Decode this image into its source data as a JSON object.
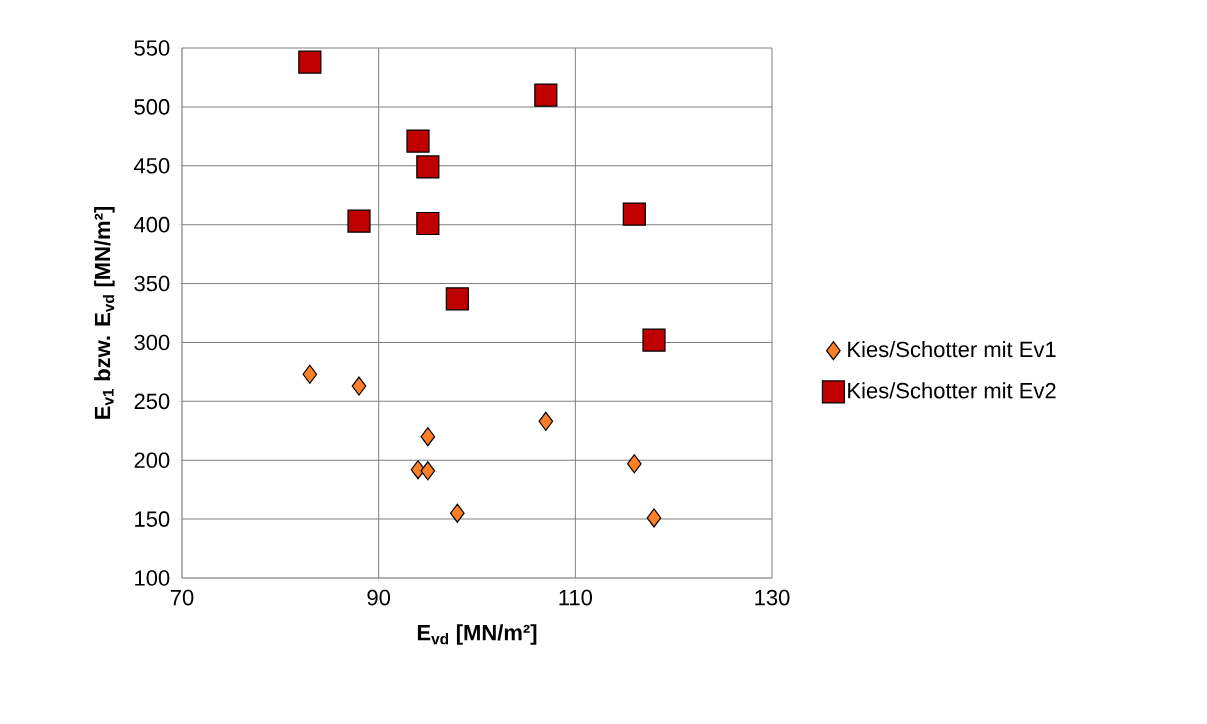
{
  "chart_data": {
    "type": "scatter",
    "xlabel": "E$_{vd}$ [MN/m²]",
    "ylabel": "E$_{v1}$ bzw. E$_{vd}$ [MN/m²]",
    "xlim": [
      70,
      130
    ],
    "xticks": [
      70,
      90,
      110,
      130
    ],
    "ylim": [
      100,
      550
    ],
    "yticks": [
      100,
      150,
      200,
      250,
      300,
      350,
      400,
      450,
      500,
      550
    ],
    "grid": true,
    "legend": "right",
    "series": [
      {
        "name": "Kies/Schotter mit Ev1",
        "color": "#ff7f27",
        "marker": "diamond",
        "x": [
          83,
          88,
          95,
          107,
          94,
          95,
          116,
          98,
          118
        ],
        "values": [
          273,
          263,
          220,
          233,
          192,
          191,
          197,
          155,
          151
        ]
      },
      {
        "name": "Kies/Schotter mit Ev2",
        "color": "#c00000",
        "marker": "square",
        "x": [
          83,
          107,
          94,
          95,
          88,
          95,
          116,
          98,
          118
        ],
        "values": [
          538,
          510,
          471,
          449,
          403,
          401,
          409,
          337,
          302
        ]
      }
    ]
  }
}
